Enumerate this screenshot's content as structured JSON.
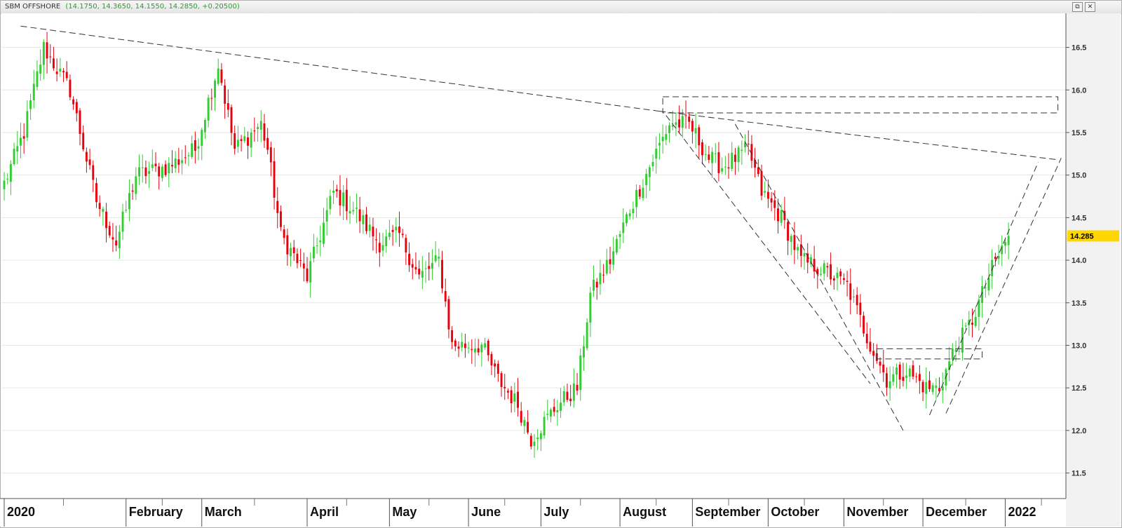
{
  "window": {
    "title": "SBM OFFSHORE",
    "ohlc_readout": "(14.1750, 14.3650, 14.1550, 14.2850, +0.20500)",
    "restore_glyph": "⧉",
    "close_glyph": "✕"
  },
  "colors": {
    "up": "#33cc33",
    "down": "#e8000b",
    "trendline": "#333333",
    "grid": "#e6e6e6",
    "price_badge": "#ffd700"
  },
  "chart_data": {
    "type": "candlestick",
    "title": "SBM OFFSHORE",
    "last_price_label": "14.285",
    "ylim": [
      11.2,
      16.9
    ],
    "yticks": [
      11.5,
      12.0,
      12.5,
      13.0,
      13.5,
      14.0,
      14.5,
      15.0,
      15.5,
      16.0,
      16.5
    ],
    "ytick_labels": [
      "11.5",
      "12.0",
      "12.5",
      "13.0",
      "13.5",
      "14.0",
      "14.5",
      "15.0",
      "15.5",
      "16.0",
      "16.5"
    ],
    "xlabels": [
      "2020",
      "February",
      "March",
      "April",
      "May",
      "June",
      "July",
      "August",
      "September",
      "October",
      "November",
      "December",
      "2022"
    ],
    "grid": true,
    "anchors": [
      {
        "t": 0,
        "c": 14.9
      },
      {
        "t": 6,
        "c": 15.5
      },
      {
        "t": 12,
        "c": 16.5
      },
      {
        "t": 20,
        "c": 16.0
      },
      {
        "t": 28,
        "c": 14.7
      },
      {
        "t": 34,
        "c": 14.2
      },
      {
        "t": 40,
        "c": 15.0
      },
      {
        "t": 50,
        "c": 15.1
      },
      {
        "t": 58,
        "c": 15.3
      },
      {
        "t": 65,
        "c": 16.3
      },
      {
        "t": 70,
        "c": 15.3
      },
      {
        "t": 78,
        "c": 15.6
      },
      {
        "t": 80,
        "c": 15.3
      },
      {
        "t": 84,
        "c": 14.3
      },
      {
        "t": 92,
        "c": 13.8
      },
      {
        "t": 100,
        "c": 14.8
      },
      {
        "t": 106,
        "c": 14.6
      },
      {
        "t": 114,
        "c": 14.2
      },
      {
        "t": 120,
        "c": 14.3
      },
      {
        "t": 126,
        "c": 13.8
      },
      {
        "t": 132,
        "c": 14.0
      },
      {
        "t": 136,
        "c": 13.0
      },
      {
        "t": 145,
        "c": 13.0
      },
      {
        "t": 150,
        "c": 12.6
      },
      {
        "t": 156,
        "c": 12.3
      },
      {
        "t": 160,
        "c": 11.9
      },
      {
        "t": 168,
        "c": 12.3
      },
      {
        "t": 174,
        "c": 12.5
      },
      {
        "t": 178,
        "c": 13.6
      },
      {
        "t": 184,
        "c": 14.0
      },
      {
        "t": 190,
        "c": 14.6
      },
      {
        "t": 196,
        "c": 15.1
      },
      {
        "t": 202,
        "c": 15.6
      },
      {
        "t": 208,
        "c": 15.6
      },
      {
        "t": 214,
        "c": 15.2
      },
      {
        "t": 218,
        "c": 15.1
      },
      {
        "t": 226,
        "c": 15.3
      },
      {
        "t": 230,
        "c": 14.8
      },
      {
        "t": 236,
        "c": 14.5
      },
      {
        "t": 242,
        "c": 14.0
      },
      {
        "t": 248,
        "c": 13.9
      },
      {
        "t": 256,
        "c": 13.7
      },
      {
        "t": 262,
        "c": 13.1
      },
      {
        "t": 268,
        "c": 12.6
      },
      {
        "t": 274,
        "c": 12.7
      },
      {
        "t": 280,
        "c": 12.5
      },
      {
        "t": 284,
        "c": 12.5
      },
      {
        "t": 288,
        "c": 12.9
      },
      {
        "t": 294,
        "c": 13.3
      },
      {
        "t": 300,
        "c": 13.9
      },
      {
        "t": 305,
        "c": 14.285
      }
    ],
    "trendlines": [
      {
        "t1": 5,
        "p1": 16.75,
        "t2": 199,
        "p2": 15.75,
        "dashed": true
      },
      {
        "t1": 199,
        "p1": 15.75,
        "t2": 320,
        "p2": 15.18,
        "dashed": true
      },
      {
        "t1": 201,
        "p1": 15.7,
        "t2": 263,
        "p2": 12.55,
        "dashed": true
      },
      {
        "t1": 222,
        "p1": 15.6,
        "t2": 273,
        "p2": 12.0,
        "dashed": true
      },
      {
        "t1": 281,
        "p1": 12.18,
        "t2": 314,
        "p2": 15.15,
        "dashed": true
      },
      {
        "t1": 286,
        "p1": 12.2,
        "t2": 321,
        "p2": 15.2,
        "dashed": true
      }
    ],
    "boxes": [
      {
        "t1": 200,
        "t2": 320,
        "p_low": 15.73,
        "p_high": 15.92
      },
      {
        "t1": 265,
        "t2": 297,
        "p_low": 12.84,
        "p_high": 12.96
      }
    ]
  }
}
